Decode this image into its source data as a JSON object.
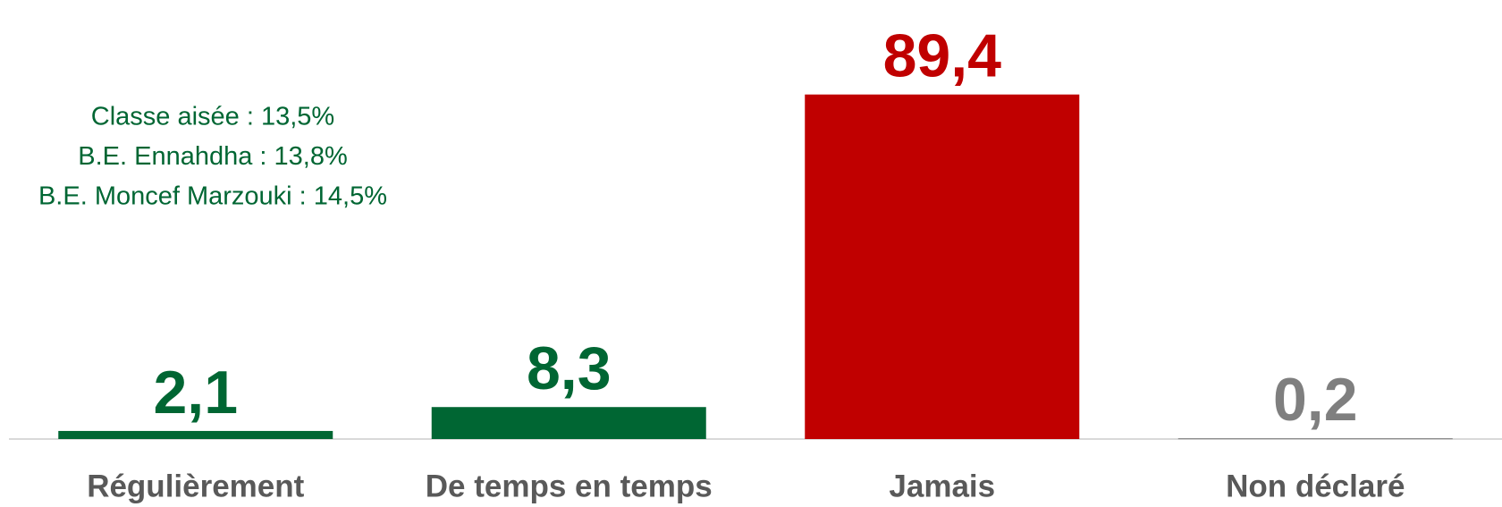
{
  "chart_data": {
    "type": "bar",
    "categories": [
      "Régulièrement",
      "De temps en temps",
      "Jamais",
      "Non déclaré"
    ],
    "values": [
      2.1,
      8.3,
      89.4,
      0.2
    ],
    "value_labels": [
      "2,1",
      "8,3",
      "89,4",
      "0,2"
    ],
    "colors": [
      "#006633",
      "#006633",
      "#c00000",
      "#7f7f7f"
    ],
    "ylim": [
      0,
      100
    ],
    "annotations": [
      "Classe aisée : 13,5%",
      "B.E. Ennahdha : 13,8%",
      "B.E. Moncef Marzouki : 14,5%"
    ]
  }
}
